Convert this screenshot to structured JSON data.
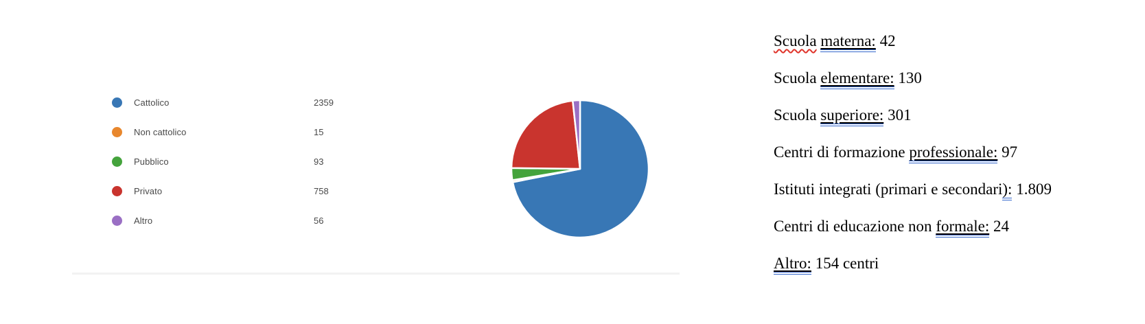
{
  "chart_data": {
    "type": "pie",
    "title": "",
    "categories": [
      "Cattolico",
      "Non cattolico",
      "Pubblico",
      "Privato",
      "Altro"
    ],
    "values": [
      2359,
      15,
      93,
      758,
      56
    ],
    "colors": [
      "#3877b5",
      "#e8872d",
      "#44a33c",
      "#c9342e",
      "#9a6fc4"
    ],
    "start_angle": "top",
    "direction": "clockwise",
    "legend_position": "left",
    "slice_border_color": "#ffffff"
  },
  "legend": {
    "items": [
      {
        "label": "Cattolico",
        "value": "2359",
        "color": "#3877b5"
      },
      {
        "label": "Non cattolico",
        "value": "15",
        "color": "#e8872d"
      },
      {
        "label": "Pubblico",
        "value": "93",
        "color": "#44a33c"
      },
      {
        "label": "Privato",
        "value": "758",
        "color": "#c9342e"
      },
      {
        "label": "Altro",
        "value": "56",
        "color": "#9a6fc4"
      }
    ]
  },
  "marks": {
    "spell_color": "#e0342b",
    "grammar_color": "#3366cc"
  },
  "notes": {
    "lines": [
      {
        "segments": [
          {
            "text": "Scuola",
            "mark": "spell"
          },
          {
            "text": " "
          },
          {
            "text": "materna:",
            "mark": "underline-grammar"
          },
          {
            "text": " 42"
          }
        ]
      },
      {
        "segments": [
          {
            "text": "Scuola "
          },
          {
            "text": "elementare:",
            "mark": "underline-grammar"
          },
          {
            "text": " 130"
          }
        ]
      },
      {
        "segments": [
          {
            "text": "Scuola "
          },
          {
            "text": "superiore:",
            "mark": "underline-grammar"
          },
          {
            "text": " 301"
          }
        ]
      },
      {
        "segments": [
          {
            "text": "Centri di formazione "
          },
          {
            "text": "professionale:",
            "mark": "underline-grammar"
          },
          {
            "text": " 97"
          }
        ]
      },
      {
        "segments": [
          {
            "text": "Istituti integrati (primari e secondari"
          },
          {
            "text": "):",
            "mark": "grammar"
          },
          {
            "text": " 1.809"
          }
        ]
      },
      {
        "segments": [
          {
            "text": "Centri di educazione non "
          },
          {
            "text": "formale:",
            "mark": "underline-grammar"
          },
          {
            "text": " 24"
          }
        ]
      },
      {
        "segments": [
          {
            "text": "Altro:",
            "mark": "underline-grammar"
          },
          {
            "text": " 154 centri"
          }
        ]
      }
    ]
  }
}
